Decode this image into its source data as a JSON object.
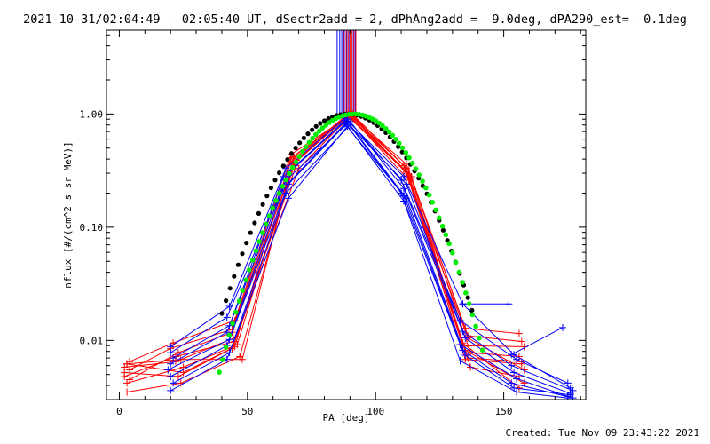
{
  "title": "2021-10-31/02:04:49 - 02:05:40 UT, dSectr2add = 2, dPhAng2add = -9.0deg, dPA290_est= -0.1deg",
  "footer": "Created: Tue Nov 09 23:43:22 2021",
  "chart_data": {
    "type": "line",
    "xlabel": "PA [deg]",
    "ylabel": "nflux [#/(cm^2 s sr MeV)]",
    "xlim": [
      -5,
      182
    ],
    "ylim": [
      0.003,
      5.5
    ],
    "yscale": "log",
    "x_ticks": [
      0,
      50,
      100,
      150
    ],
    "x_tick_labels": [
      "0",
      "50",
      "100",
      "150"
    ],
    "y_ticks": [
      0.01,
      0.1,
      1.0
    ],
    "y_tick_labels": [
      "0.01",
      "0.10",
      "1.00"
    ],
    "grid": false,
    "colors": {
      "red": "#ff0000",
      "blue": "#0000ff",
      "green": "#00ee00",
      "black": "#000000"
    },
    "vertical_lines": {
      "y_range": [
        1.0,
        5.5
      ],
      "red_x": [
        87.5,
        88.5,
        89.3,
        90.0,
        90.7,
        91.5,
        92.3
      ],
      "blue_x": [
        85.0,
        86.0,
        86.8,
        87.8,
        88.8,
        89.8,
        90.5,
        91.3,
        92.0
      ]
    },
    "red_series": [
      {
        "x": [
          3,
          24,
          48,
          68,
          90,
          112,
          135,
          156
        ],
        "y": [
          0.0062,
          0.0068,
          0.0068,
          0.42,
          1.0,
          0.36,
          0.0128,
          0.0115
        ]
      },
      {
        "x": [
          4,
          20,
          44,
          67,
          90,
          113,
          136,
          157
        ],
        "y": [
          0.0055,
          0.0085,
          0.0125,
          0.38,
          0.98,
          0.32,
          0.011,
          0.0098
        ]
      },
      {
        "x": [
          2,
          22,
          45,
          69,
          91,
          112,
          134,
          158
        ],
        "y": [
          0.0048,
          0.0072,
          0.0098,
          0.35,
          0.97,
          0.3,
          0.009,
          0.0088
        ]
      },
      {
        "x": [
          3,
          25,
          46,
          68,
          89,
          114,
          137,
          156
        ],
        "y": [
          0.0042,
          0.0058,
          0.0092,
          0.4,
          0.99,
          0.28,
          0.0078,
          0.0072
        ]
      },
      {
        "x": [
          2,
          23,
          44,
          70,
          90,
          113,
          135,
          157
        ],
        "y": [
          0.0052,
          0.0048,
          0.0085,
          0.33,
          0.96,
          0.26,
          0.0068,
          0.0062
        ]
      },
      {
        "x": [
          4,
          21,
          45,
          67,
          91,
          111,
          136,
          158
        ],
        "y": [
          0.0065,
          0.0095,
          0.015,
          0.44,
          1.0,
          0.35,
          0.0105,
          0.0055
        ]
      },
      {
        "x": [
          3,
          24,
          47,
          68,
          90,
          112,
          137,
          156
        ],
        "y": [
          0.0035,
          0.0042,
          0.0072,
          0.37,
          0.98,
          0.31,
          0.0058,
          0.0048
        ]
      },
      {
        "x": [
          2,
          22,
          46,
          69,
          89,
          113,
          135,
          158
        ],
        "y": [
          0.0058,
          0.0065,
          0.0108,
          0.39,
          0.97,
          0.29,
          0.0082,
          0.0042
        ]
      },
      {
        "x": [
          4,
          23,
          44,
          68,
          90,
          114,
          134,
          156
        ],
        "y": [
          0.0045,
          0.0078,
          0.0118,
          0.36,
          1.0,
          0.27,
          0.0095,
          0.0038
        ]
      },
      {
        "x": [
          3,
          25,
          45,
          67,
          91,
          112,
          136,
          157
        ],
        "y": [
          0.0062,
          0.0052,
          0.0088,
          0.41,
          0.99,
          0.33,
          0.007,
          0.0065
        ]
      }
    ],
    "blue_series": [
      {
        "x": [
          20,
          43,
          65,
          88,
          111,
          134,
          154,
          176
        ],
        "y": [
          0.0088,
          0.02,
          0.33,
          0.92,
          0.28,
          0.021,
          0.0075,
          0.0038
        ]
      },
      {
        "x": [
          20,
          42,
          66,
          89,
          110,
          133,
          155,
          175
        ],
        "y": [
          0.0078,
          0.016,
          0.3,
          0.9,
          0.26,
          0.015,
          0.0068,
          0.0042
        ]
      },
      {
        "x": [
          21,
          43,
          64,
          88,
          112,
          134,
          153,
          177
        ],
        "y": [
          0.007,
          0.0135,
          0.28,
          0.88,
          0.24,
          0.012,
          0.006,
          0.0036
        ]
      },
      {
        "x": [
          20,
          42,
          65,
          90,
          111,
          135,
          154,
          176
        ],
        "y": [
          0.0062,
          0.0118,
          0.26,
          0.86,
          0.22,
          0.0105,
          0.0052,
          0.0034
        ]
      },
      {
        "x": [
          19,
          43,
          66,
          89,
          110,
          133,
          155,
          175
        ],
        "y": [
          0.0055,
          0.0102,
          0.24,
          0.84,
          0.2,
          0.0092,
          0.0046,
          0.0032
        ]
      },
      {
        "x": [
          20,
          42,
          64,
          88,
          111,
          134,
          153,
          177
        ],
        "y": [
          0.0048,
          0.009,
          0.22,
          0.82,
          0.19,
          0.0082,
          0.0042,
          0.0031
        ]
      },
      {
        "x": [
          21,
          43,
          65,
          90,
          112,
          135,
          154,
          176
        ],
        "y": [
          0.0042,
          0.0078,
          0.2,
          0.8,
          0.18,
          0.0074,
          0.0038,
          0.0033
        ]
      },
      {
        "x": [
          20,
          42,
          66,
          89,
          111,
          133,
          155,
          175
        ],
        "y": [
          0.0036,
          0.0068,
          0.18,
          0.78,
          0.17,
          0.0066,
          0.0035,
          0.0031
        ]
      }
    ],
    "blue_outlier": {
      "x": [
        134,
        152
      ],
      "y": [
        0.021,
        0.021
      ],
      "x2": [
        153,
        173
      ],
      "y2": [
        0.0075,
        0.013
      ]
    },
    "fit_black": {
      "center": 89,
      "sigma": 17.2,
      "peak": 1.0,
      "x_from": 40,
      "x_to": 139,
      "step": 1.6
    },
    "fit_green": {
      "center": 91.5,
      "sigma": 16.2,
      "peak": 1.0,
      "x_from": 39,
      "x_to": 142,
      "step": 1.3
    }
  }
}
